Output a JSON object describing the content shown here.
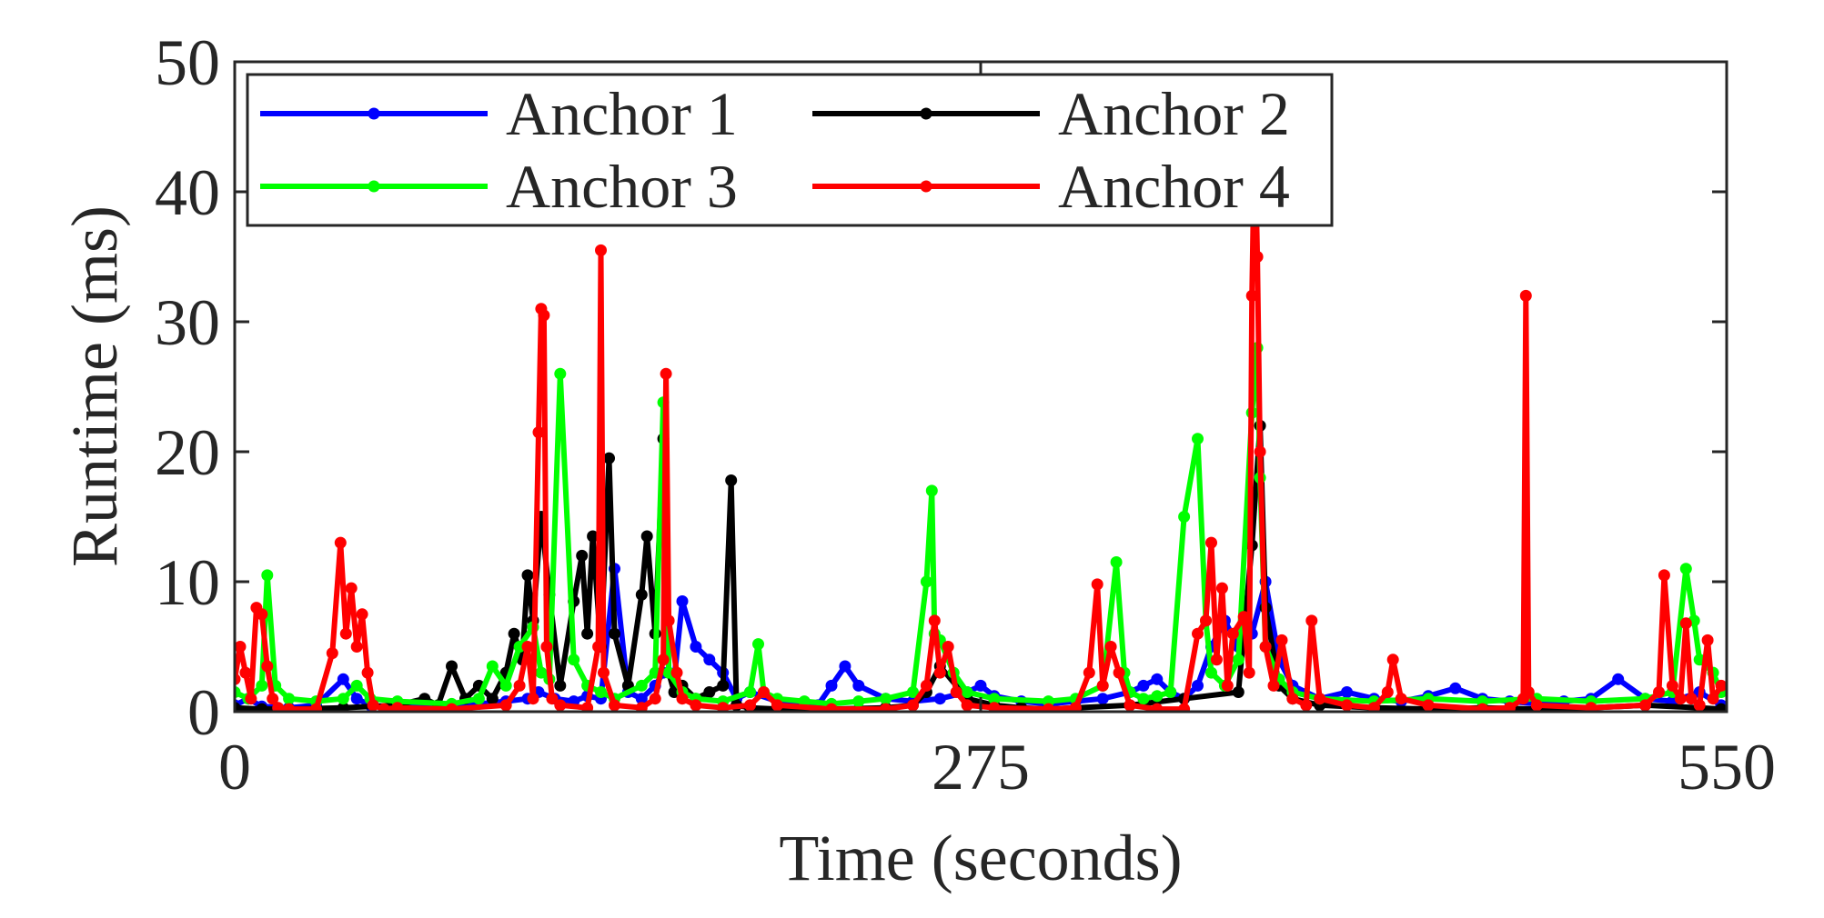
{
  "chart_data": {
    "type": "line",
    "title": "",
    "xlabel": "Time (seconds)",
    "ylabel": "Runtime (ms)",
    "xlim": [
      0,
      550
    ],
    "ylim": [
      0,
      50
    ],
    "xticks": [
      "0",
      "275",
      "550"
    ],
    "yticks": [
      "0",
      "10",
      "20",
      "30",
      "40",
      "50"
    ],
    "grid": false,
    "legend": {
      "placement": "top-left",
      "columns": 2
    },
    "series": [
      {
        "name": "Anchor 1",
        "color": "#0000ff",
        "x": [
          0,
          5,
          10,
          20,
          30,
          40,
          45,
          50,
          60,
          70,
          80,
          90,
          100,
          108,
          112,
          118,
          125,
          130,
          135,
          140,
          145,
          150,
          155,
          158,
          162,
          165,
          170,
          175,
          180,
          185,
          190,
          200,
          210,
          215,
          220,
          225,
          230,
          240,
          250,
          260,
          270,
          275,
          280,
          290,
          300,
          310,
          320,
          330,
          335,
          340,
          345,
          350,
          355,
          360,
          365,
          370,
          375,
          380,
          385,
          390,
          400,
          410,
          420,
          430,
          440,
          450,
          460,
          470,
          480,
          490,
          500,
          510,
          520,
          530,
          540,
          548
        ],
        "y": [
          0.5,
          1.0,
          0.4,
          0.3,
          0.5,
          2.5,
          1.0,
          0.5,
          0.3,
          0.4,
          0.5,
          0.6,
          0.8,
          1.0,
          1.5,
          1.0,
          0.8,
          1.2,
          1.0,
          11.0,
          1.5,
          1.0,
          2.0,
          3.0,
          2.5,
          8.5,
          5.0,
          4.0,
          3.0,
          1.0,
          1.5,
          0.8,
          0.6,
          0.5,
          2.0,
          3.5,
          2.0,
          1.0,
          0.8,
          1.0,
          1.5,
          2.0,
          1.2,
          0.8,
          0.6,
          0.8,
          1.0,
          1.5,
          2.0,
          2.5,
          1.5,
          1.0,
          2.0,
          5.0,
          7.0,
          5.0,
          6.0,
          10.0,
          4.0,
          2.0,
          1.0,
          1.5,
          1.0,
          0.8,
          1.2,
          1.8,
          1.0,
          0.8,
          0.6,
          0.8,
          1.0,
          2.5,
          1.0,
          0.8,
          1.5,
          0.5
        ]
      },
      {
        "name": "Anchor 2",
        "color": "#000000",
        "x": [
          0,
          10,
          20,
          40,
          60,
          70,
          75,
          80,
          85,
          90,
          95,
          100,
          103,
          106,
          108,
          110,
          113,
          116,
          120,
          125,
          128,
          130,
          132,
          135,
          138,
          140,
          145,
          150,
          152,
          155,
          158,
          160,
          162,
          165,
          170,
          175,
          180,
          183,
          185,
          190,
          200,
          220,
          240,
          250,
          255,
          260,
          270,
          280,
          290,
          300,
          310,
          330,
          350,
          370,
          375,
          378,
          380,
          385,
          390,
          400,
          420,
          440,
          460,
          480,
          500,
          520,
          540,
          548
        ],
        "y": [
          0.3,
          0.2,
          0.2,
          0.3,
          0.5,
          1.0,
          0.5,
          3.5,
          1.0,
          2.0,
          1.0,
          3.0,
          6.0,
          4.0,
          10.5,
          7.0,
          15.0,
          9.0,
          2.0,
          8.5,
          12.0,
          6.0,
          13.5,
          5.0,
          19.5,
          6.0,
          2.0,
          9.0,
          13.5,
          6.0,
          21.0,
          3.0,
          1.5,
          2.0,
          1.0,
          1.5,
          2.0,
          17.8,
          0.5,
          0.3,
          0.2,
          0.2,
          0.3,
          0.5,
          1.5,
          3.5,
          1.0,
          0.5,
          0.3,
          0.2,
          0.3,
          0.5,
          1.0,
          1.5,
          12.8,
          22.0,
          8.0,
          2.0,
          1.0,
          0.5,
          0.3,
          0.2,
          0.3,
          0.2,
          0.3,
          0.5,
          0.3,
          0.2
        ]
      },
      {
        "name": "Anchor 3",
        "color": "#00ff00",
        "x": [
          0,
          5,
          10,
          12,
          15,
          20,
          30,
          40,
          45,
          50,
          60,
          80,
          90,
          95,
          100,
          105,
          110,
          113,
          116,
          120,
          125,
          130,
          135,
          140,
          150,
          155,
          158,
          160,
          165,
          170,
          180,
          190,
          193,
          195,
          200,
          210,
          220,
          230,
          240,
          250,
          255,
          257,
          258,
          260,
          265,
          270,
          280,
          300,
          310,
          320,
          325,
          328,
          330,
          335,
          340,
          345,
          350,
          355,
          358,
          360,
          365,
          370,
          375,
          377,
          378,
          380,
          385,
          390,
          400,
          420,
          440,
          460,
          480,
          500,
          520,
          530,
          535,
          538,
          540,
          545,
          548
        ],
        "y": [
          1.5,
          1.0,
          2.0,
          10.5,
          2.0,
          1.0,
          0.8,
          1.0,
          2.0,
          1.0,
          0.8,
          0.6,
          1.0,
          3.5,
          2.0,
          5.0,
          6.5,
          3.0,
          2.5,
          26.0,
          4.0,
          2.0,
          1.5,
          1.0,
          2.0,
          3.0,
          23.8,
          3.0,
          1.5,
          1.0,
          0.8,
          1.5,
          5.2,
          1.5,
          1.0,
          0.8,
          0.6,
          0.8,
          1.0,
          1.5,
          10.0,
          17.0,
          6.0,
          5.5,
          3.0,
          1.5,
          1.0,
          0.8,
          1.0,
          2.0,
          11.5,
          3.0,
          1.5,
          1.0,
          1.2,
          1.5,
          15.0,
          21.0,
          7.0,
          3.0,
          2.0,
          4.0,
          23.0,
          28.0,
          18.0,
          5.0,
          2.5,
          1.5,
          1.0,
          0.8,
          1.0,
          0.8,
          1.0,
          0.8,
          1.0,
          1.5,
          11.0,
          7.0,
          4.0,
          3.0,
          1.5
        ]
      },
      {
        "name": "Anchor 4",
        "color": "#ff0000",
        "x": [
          0,
          2,
          4,
          6,
          8,
          10,
          12,
          14,
          16,
          20,
          30,
          36,
          39,
          41,
          43,
          45,
          47,
          49,
          51,
          55,
          60,
          80,
          100,
          105,
          108,
          110,
          112,
          113,
          114,
          115,
          117,
          120,
          130,
          134,
          135,
          136,
          140,
          150,
          155,
          158,
          159,
          160,
          163,
          165,
          170,
          180,
          190,
          195,
          200,
          220,
          240,
          250,
          255,
          258,
          260,
          263,
          266,
          270,
          280,
          300,
          310,
          315,
          318,
          320,
          323,
          326,
          330,
          340,
          350,
          355,
          358,
          360,
          362,
          364,
          366,
          368,
          372,
          374,
          375,
          376,
          377,
          378,
          380,
          383,
          386,
          390,
          395,
          397,
          400,
          410,
          420,
          425,
          427,
          430,
          440,
          460,
          470,
          475,
          476,
          477,
          480,
          500,
          520,
          525,
          527,
          530,
          533,
          535,
          537,
          540,
          543,
          545,
          548
        ],
        "y": [
          2.5,
          5.0,
          3.0,
          1.0,
          8.0,
          7.5,
          3.5,
          1.0,
          0.3,
          0.2,
          0.2,
          4.5,
          13.0,
          6.0,
          9.5,
          5.0,
          7.5,
          3.0,
          0.5,
          0.2,
          0.3,
          0.2,
          0.5,
          2.0,
          5.0,
          1.0,
          21.5,
          31.0,
          30.5,
          5.0,
          1.0,
          0.5,
          0.3,
          5.0,
          35.5,
          3.0,
          0.5,
          0.3,
          1.0,
          4.0,
          26.0,
          7.0,
          3.0,
          1.0,
          0.5,
          0.3,
          0.5,
          1.5,
          0.5,
          0.2,
          0.2,
          0.5,
          2.0,
          7.0,
          3.0,
          5.0,
          1.5,
          0.5,
          0.3,
          0.2,
          0.3,
          3.0,
          9.8,
          2.0,
          5.0,
          3.0,
          0.5,
          0.2,
          0.2,
          6.0,
          7.0,
          13.0,
          4.0,
          9.5,
          2.0,
          6.0,
          7.3,
          3.0,
          32.0,
          45.0,
          35.0,
          20.0,
          5.0,
          2.0,
          5.5,
          1.0,
          0.5,
          7.0,
          1.0,
          0.5,
          0.3,
          1.5,
          4.0,
          1.0,
          0.5,
          0.2,
          0.3,
          1.0,
          32.0,
          1.5,
          0.5,
          0.3,
          0.5,
          1.5,
          10.5,
          2.0,
          1.0,
          6.8,
          1.0,
          0.5,
          5.5,
          1.0,
          2.0
        ]
      }
    ]
  }
}
